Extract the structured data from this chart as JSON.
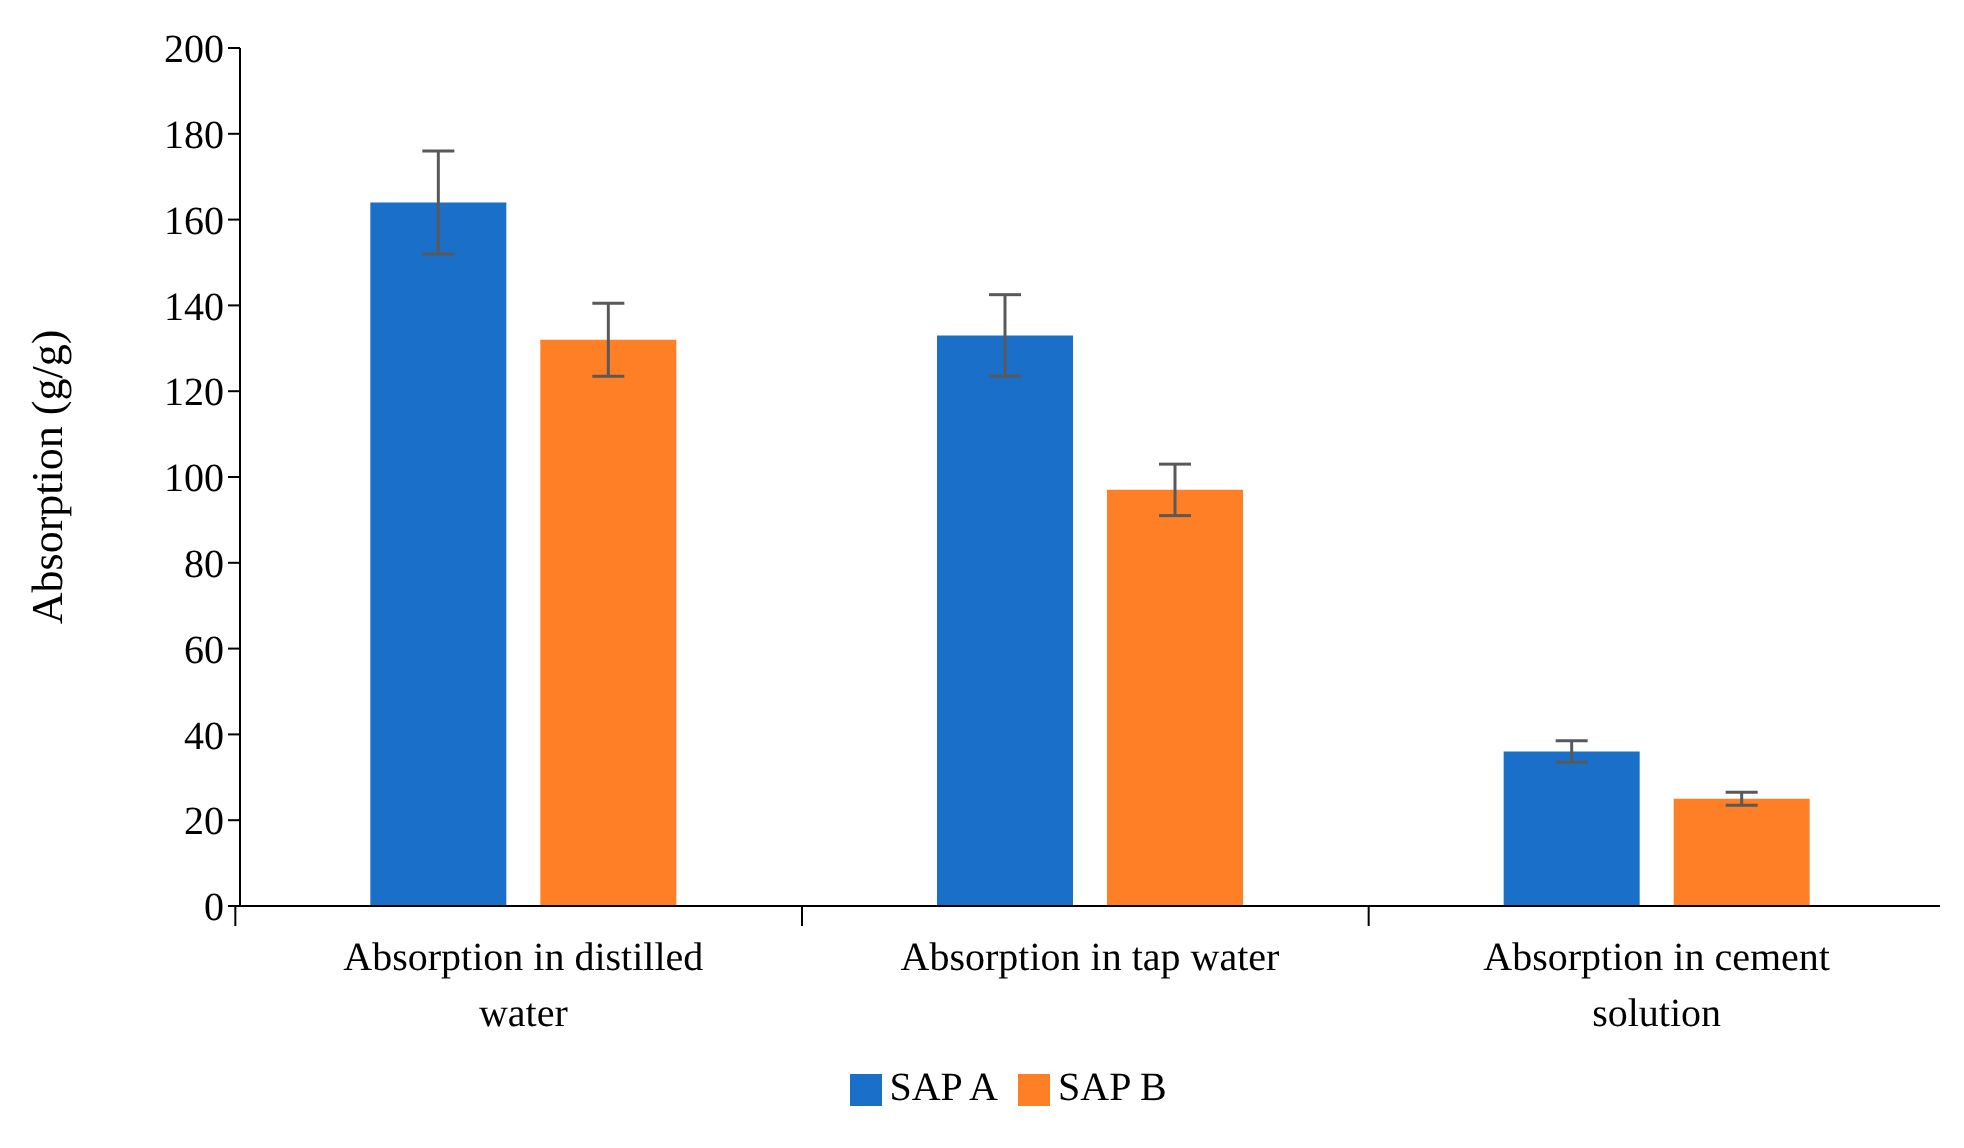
{
  "chart_data": {
    "type": "bar",
    "ylabel": "Absorption (g/g)",
    "categories": [
      "Absorption in distilled water",
      "Absorption in tap water",
      "Absorption in cement solution"
    ],
    "series": [
      {
        "name": "SAP A",
        "color": "#1a6fc8",
        "values": [
          164,
          133,
          36
        ],
        "errors": [
          12,
          9.5,
          2.5
        ]
      },
      {
        "name": "SAP B",
        "color": "#ff7f27",
        "values": [
          132,
          97,
          25
        ],
        "errors": [
          8.5,
          6,
          1.5
        ]
      }
    ],
    "ylim": [
      0,
      200
    ],
    "yticks": [
      0,
      20,
      40,
      60,
      80,
      100,
      120,
      140,
      160,
      180,
      200
    ],
    "grid": false,
    "legend": "bottom"
  }
}
